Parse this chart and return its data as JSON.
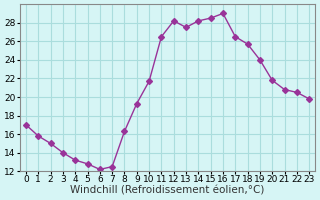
{
  "x": [
    0,
    1,
    2,
    3,
    4,
    5,
    6,
    7,
    8,
    9,
    10,
    11,
    12,
    13,
    14,
    15,
    16,
    17,
    18,
    19,
    20,
    21,
    22,
    23
  ],
  "y": [
    17.0,
    15.8,
    15.0,
    14.0,
    13.2,
    12.8,
    12.2,
    12.5,
    16.3,
    19.3,
    21.7,
    26.5,
    28.2,
    27.5,
    28.2,
    28.5,
    29.0,
    26.5,
    25.7,
    24.0,
    21.8,
    20.8,
    20.5,
    19.8
  ],
  "line_color": "#993399",
  "marker": "D",
  "marker_size": 3,
  "bg_color": "#d6f5f5",
  "grid_color": "#aadddd",
  "xlabel": "Windchill (Refroidissement éolien,°C)",
  "xlabel_fontsize": 7.5,
  "xlim": [
    -0.5,
    23.5
  ],
  "ylim": [
    12,
    30
  ],
  "yticks": [
    12,
    14,
    16,
    18,
    20,
    22,
    24,
    26,
    28
  ],
  "xticks": [
    0,
    1,
    2,
    3,
    4,
    5,
    6,
    7,
    8,
    9,
    10,
    11,
    12,
    13,
    14,
    15,
    16,
    17,
    18,
    19,
    20,
    21,
    22,
    23
  ],
  "tick_fontsize": 6.5
}
